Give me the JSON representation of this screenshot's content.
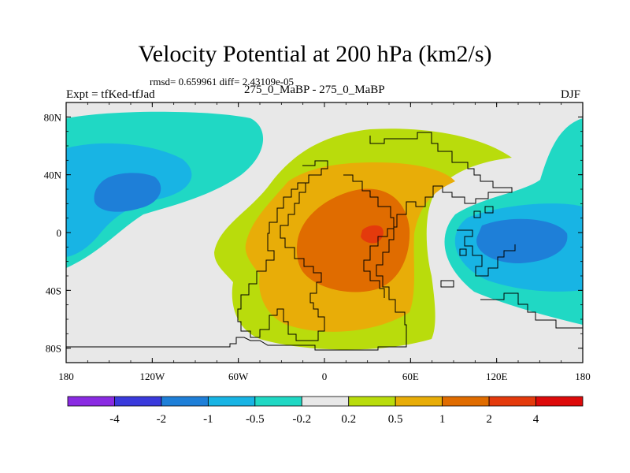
{
  "chart_data": {
    "type": "heatmap",
    "title": "Velocity Potential at 200 hPa (km2/s)",
    "subtitle": "rmsd= 0.659961 diff= 2.43109e-05",
    "left_label": "Expt = tfKed-tfJad",
    "center_label": "275_0_MaBP - 275_0_MaBP",
    "right_label": "DJF",
    "x_tick_labels": [
      "180",
      "120W",
      "60W",
      "0",
      "60E",
      "120E",
      "180"
    ],
    "y_tick_labels": [
      "80N",
      "40N",
      "0",
      "40S",
      "80S"
    ],
    "x_range": [
      -180,
      180
    ],
    "y_range": [
      -90,
      90
    ],
    "colorbar": {
      "levels": [
        "-4",
        "-2",
        "-1",
        "-0.5",
        "-0.2",
        "0.2",
        "0.5",
        "1",
        "2",
        "4"
      ],
      "colors": [
        "#8a2be2",
        "#3a3adc",
        "#1e7fd8",
        "#18b4e4",
        "#20d8c4",
        "#e8e8e8",
        "#b9dc0c",
        "#e8ad08",
        "#e06c00",
        "#e43a0c",
        "#dd0a0a"
      ]
    },
    "fields": [
      {
        "name": "north-pacific-negative",
        "level": "-0.5",
        "color": "#20d8c4"
      },
      {
        "name": "north-pacific-negative-core",
        "level": "-1",
        "color": "#18b4e4"
      },
      {
        "name": "north-pacific-negative-center",
        "level": "-2",
        "color": "#1e7fd8"
      },
      {
        "name": "east-negative",
        "level": "-0.5",
        "color": "#20d8c4"
      },
      {
        "name": "east-negative-core",
        "level": "-1",
        "color": "#18b4e4"
      },
      {
        "name": "east-negative-center",
        "level": "-2",
        "color": "#1e7fd8"
      },
      {
        "name": "central-positive",
        "level": "0.2",
        "color": "#b9dc0c"
      },
      {
        "name": "central-positive-mid",
        "level": "0.5",
        "color": "#e8ad08"
      },
      {
        "name": "central-positive-high",
        "level": "1",
        "color": "#e06c00"
      },
      {
        "name": "central-positive-max",
        "level": "2",
        "color": "#e43a0c"
      }
    ]
  }
}
